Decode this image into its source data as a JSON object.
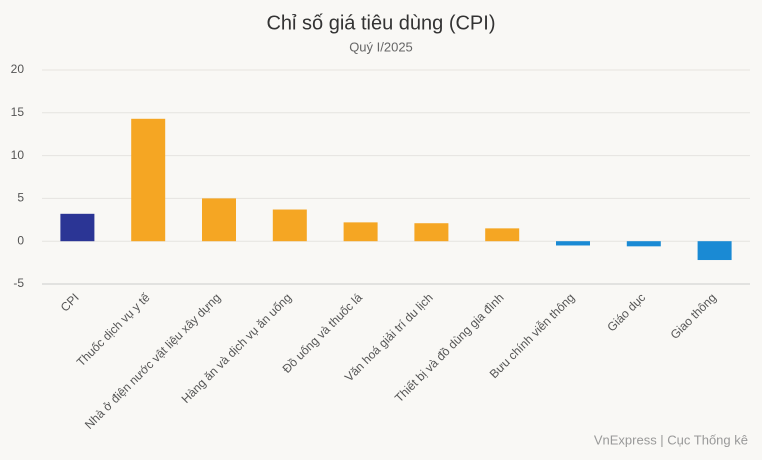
{
  "chart_data": {
    "type": "bar",
    "title": "Chỉ số giá tiêu dùng (CPI)",
    "subtitle": "Quý I/2025",
    "categories": [
      "CPI",
      "Thuốc dịch vụ y tế",
      "Nhà ở điện nước vật liệu xây dựng",
      "Hàng ăn và dịch vụ ăn uống",
      "Đồ uống và thuốc lá",
      "Văn hoá giải trí du lịch",
      "Thiết bị và đồ dùng gia đình",
      "Bưu chính viễn thông",
      "Giáo dục",
      "Giao thông"
    ],
    "values": [
      3.2,
      14.3,
      5.0,
      3.7,
      2.2,
      2.1,
      1.5,
      -0.5,
      -0.6,
      -2.2
    ],
    "colors": [
      "#2b3595",
      "#f5a623",
      "#f5a623",
      "#f5a623",
      "#f5a623",
      "#f5a623",
      "#f5a623",
      "#1a8ad4",
      "#1a8ad4",
      "#1a8ad4"
    ],
    "ylim": [
      -5,
      20
    ],
    "yticks": [
      -5,
      0,
      5,
      10,
      15,
      20
    ],
    "grid": true,
    "source": "VnExpress | Cục Thống kê"
  }
}
